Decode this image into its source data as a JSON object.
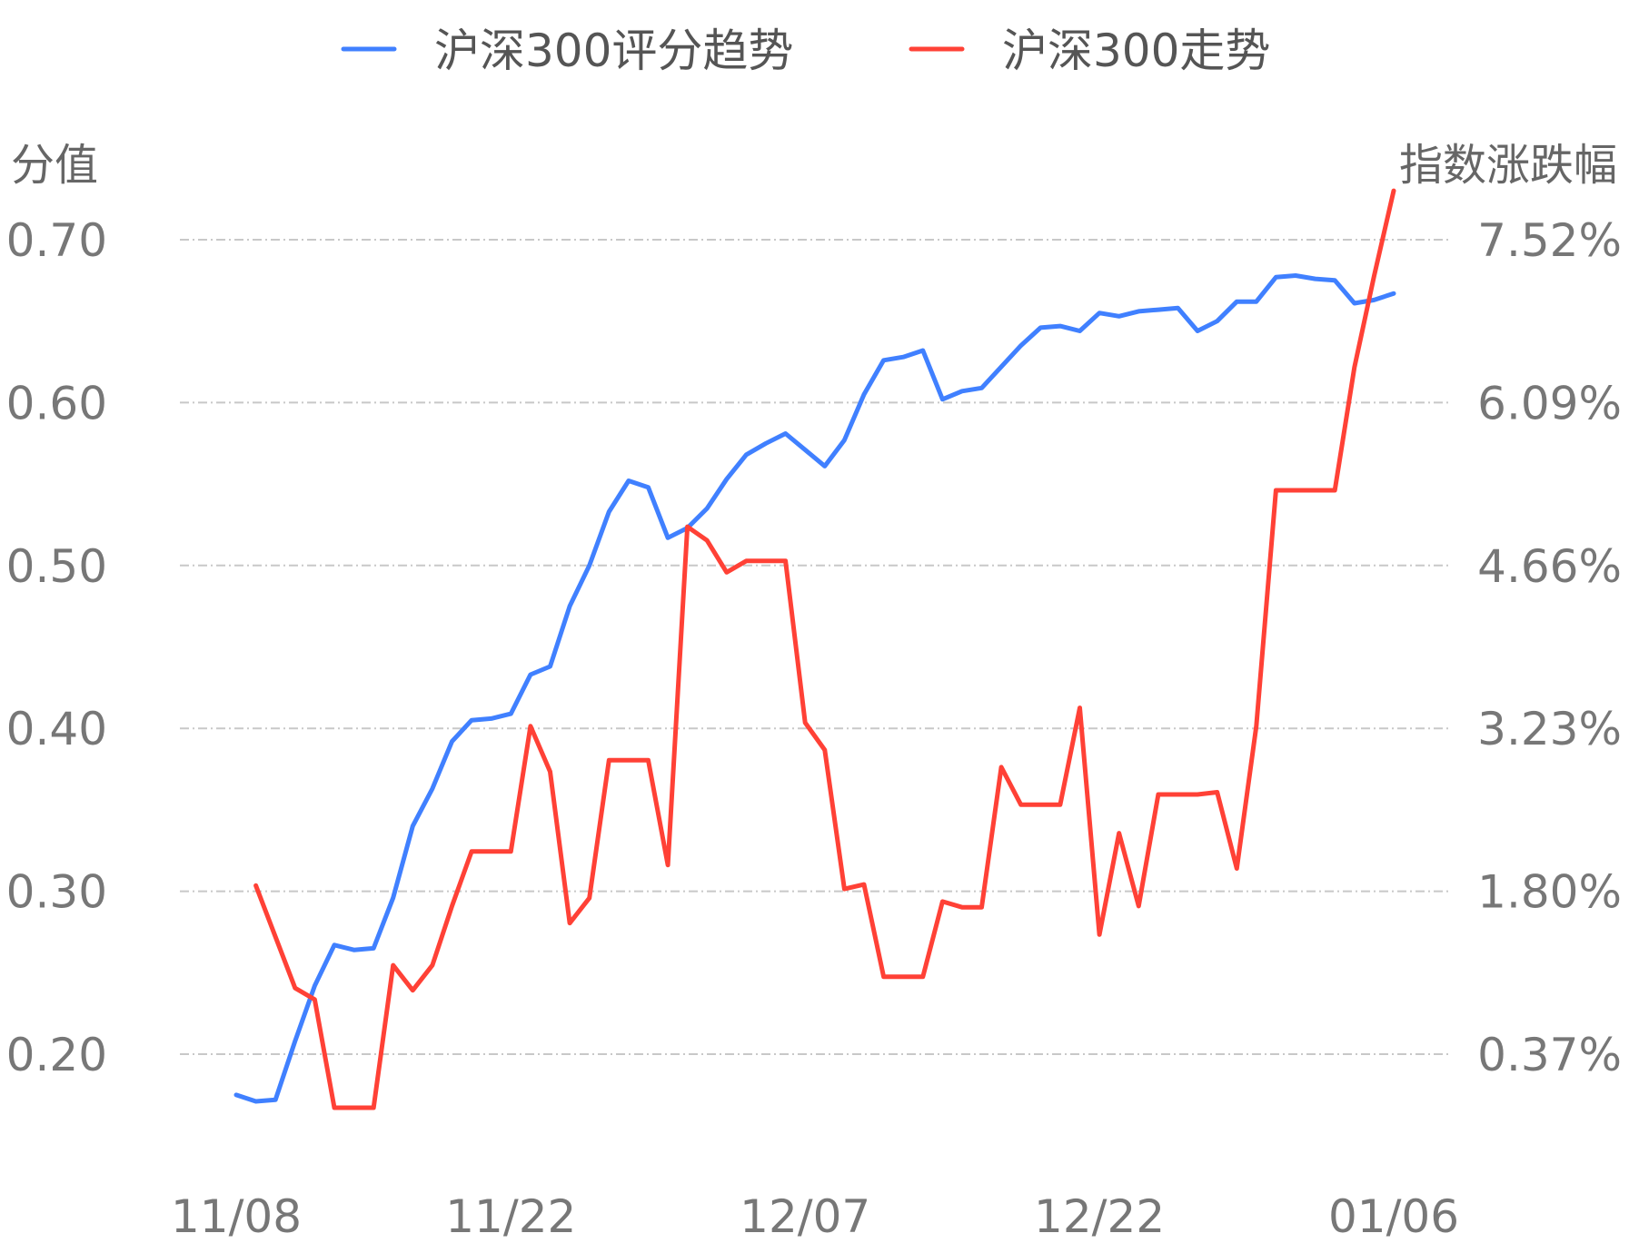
{
  "chart_data": {
    "type": "line",
    "legend": {
      "position": "top-center",
      "items": [
        {
          "label": "沪深300评分趋势",
          "color": "#4080ff"
        },
        {
          "label": "沪深300走势",
          "color": "#ff4136"
        }
      ]
    },
    "left_axis": {
      "title": "分值",
      "range": [
        0.2,
        0.7
      ],
      "ticks": [
        0.2,
        0.3,
        0.4,
        0.5,
        0.6,
        0.7
      ],
      "tick_labels": [
        "0.20",
        "0.30",
        "0.40",
        "0.50",
        "0.60",
        "0.70"
      ]
    },
    "right_axis": {
      "title": "指数涨跌幅",
      "range": [
        0.37,
        7.52
      ],
      "tick_labels": [
        "0.37%",
        "1.80%",
        "3.23%",
        "4.66%",
        "6.09%",
        "7.52%"
      ]
    },
    "x_axis": {
      "tick_labels": [
        "11/08",
        "11/22",
        "12/07",
        "12/22",
        "01/06"
      ],
      "tick_indices": [
        0,
        14,
        29,
        44,
        59
      ]
    },
    "grid": true,
    "series": [
      {
        "name": "沪深300评分趋势",
        "color": "#4080ff",
        "axis": "left",
        "start_index": 0,
        "values": [
          0.175,
          0.171,
          0.172,
          0.208,
          0.242,
          0.267,
          0.264,
          0.265,
          0.296,
          0.34,
          0.363,
          0.392,
          0.405,
          0.406,
          0.409,
          0.433,
          0.438,
          0.475,
          0.5,
          0.533,
          0.552,
          0.548,
          0.517,
          0.523,
          0.535,
          0.553,
          0.568,
          0.575,
          0.581,
          0.571,
          0.561,
          0.577,
          0.605,
          0.626,
          0.628,
          0.632,
          0.602,
          0.607,
          0.609,
          0.622,
          0.635,
          0.646,
          0.647,
          0.644,
          0.655,
          0.653,
          0.656,
          0.657,
          0.658,
          0.644,
          0.65,
          0.662,
          0.662,
          0.677,
          0.678,
          0.676,
          0.675,
          0.661,
          0.663,
          0.667
        ]
      },
      {
        "name": "沪深300走势",
        "color": "#ff4136",
        "axis": "right",
        "start_index": 1,
        "values": [
          1.85,
          1.4,
          0.95,
          0.85,
          -0.1,
          -0.1,
          -0.1,
          1.15,
          0.93,
          1.15,
          1.67,
          2.15,
          2.15,
          2.15,
          3.25,
          2.85,
          1.52,
          1.74,
          2.95,
          2.95,
          2.95,
          2.03,
          5.0,
          4.88,
          4.6,
          4.7,
          4.7,
          4.7,
          3.28,
          3.04,
          1.82,
          1.86,
          1.05,
          1.05,
          1.05,
          1.71,
          1.66,
          1.66,
          2.89,
          2.56,
          2.56,
          2.56,
          3.41,
          1.42,
          2.31,
          1.67,
          2.65,
          2.65,
          2.65,
          2.67,
          2.0,
          3.25,
          5.32,
          5.32,
          5.32,
          5.32,
          6.4,
          7.2,
          7.95
        ]
      }
    ],
    "x_count": 60
  }
}
